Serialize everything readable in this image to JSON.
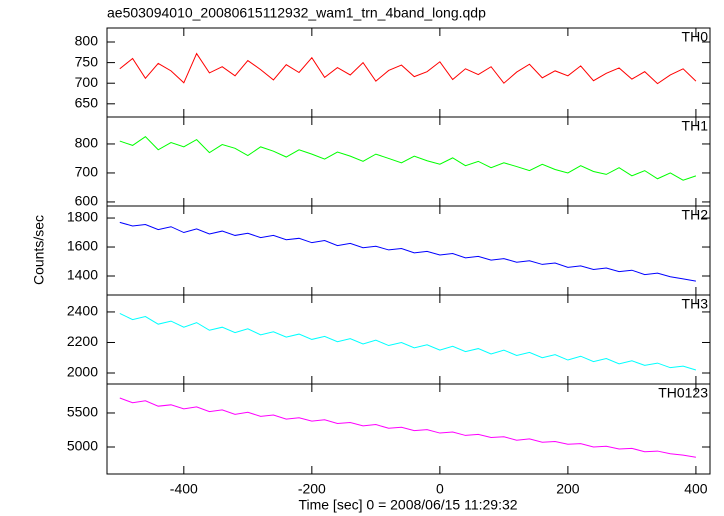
{
  "chart_data": [
    {
      "type": "line",
      "title": "ae503094010_20080615112932_wam1_trn_4band_long.qdp",
      "x": [
        -500,
        -480,
        -460,
        -440,
        -420,
        -400,
        -380,
        -360,
        -340,
        -320,
        -300,
        -280,
        -260,
        -240,
        -220,
        -200,
        -180,
        -160,
        -140,
        -120,
        -100,
        -80,
        -60,
        -40,
        -20,
        0,
        20,
        40,
        60,
        80,
        100,
        120,
        140,
        160,
        180,
        200,
        220,
        240,
        260,
        280,
        300,
        320,
        340,
        360,
        380,
        400
      ],
      "series": [
        {
          "name": "TH0",
          "color": "#ff0000",
          "values": [
            735,
            760,
            712,
            748,
            730,
            701,
            772,
            725,
            740,
            718,
            755,
            733,
            708,
            745,
            726,
            762,
            714,
            738,
            720,
            750,
            705,
            731,
            744,
            716,
            728,
            752,
            709,
            735,
            721,
            740,
            700,
            727,
            746,
            713,
            730,
            718,
            742,
            706,
            724,
            737,
            710,
            728,
            699,
            720,
            735,
            705
          ]
        }
      ],
      "xlim": [
        -520,
        422
      ],
      "xticks": [
        -400,
        -200,
        0,
        200,
        400
      ],
      "ylim": [
        618,
        834
      ],
      "yticks": [
        650,
        700,
        750,
        800
      ]
    },
    {
      "type": "line",
      "x": [
        -500,
        -480,
        -460,
        -440,
        -420,
        -400,
        -380,
        -360,
        -340,
        -320,
        -300,
        -280,
        -260,
        -240,
        -220,
        -200,
        -180,
        -160,
        -140,
        -120,
        -100,
        -80,
        -60,
        -40,
        -20,
        0,
        20,
        40,
        60,
        80,
        100,
        120,
        140,
        160,
        180,
        200,
        220,
        240,
        260,
        280,
        300,
        320,
        340,
        360,
        380,
        400
      ],
      "series": [
        {
          "name": "TH1",
          "color": "#00ff00",
          "values": [
            810,
            795,
            825,
            780,
            805,
            790,
            815,
            770,
            798,
            785,
            760,
            790,
            775,
            755,
            780,
            765,
            748,
            772,
            758,
            740,
            765,
            750,
            735,
            758,
            742,
            730,
            752,
            725,
            740,
            718,
            735,
            722,
            708,
            730,
            712,
            700,
            725,
            705,
            695,
            718,
            690,
            708,
            680,
            700,
            675,
            690
          ]
        }
      ],
      "xlim": [
        -520,
        422
      ],
      "xticks": [
        -400,
        -200,
        0,
        200,
        400
      ],
      "ylim": [
        586,
        893
      ],
      "yticks": [
        600,
        700,
        800
      ]
    },
    {
      "type": "line",
      "ylabel": "Counts/sec",
      "x": [
        -500,
        -480,
        -460,
        -440,
        -420,
        -400,
        -380,
        -360,
        -340,
        -320,
        -300,
        -280,
        -260,
        -240,
        -220,
        -200,
        -180,
        -160,
        -140,
        -120,
        -100,
        -80,
        -60,
        -40,
        -20,
        0,
        20,
        40,
        60,
        80,
        100,
        120,
        140,
        160,
        180,
        200,
        220,
        240,
        260,
        280,
        300,
        320,
        340,
        360,
        380,
        400
      ],
      "series": [
        {
          "name": "TH2",
          "color": "#0000ff",
          "values": [
            1770,
            1745,
            1755,
            1720,
            1740,
            1700,
            1725,
            1690,
            1710,
            1680,
            1695,
            1665,
            1680,
            1650,
            1660,
            1630,
            1645,
            1610,
            1625,
            1595,
            1605,
            1580,
            1590,
            1560,
            1570,
            1545,
            1555,
            1525,
            1535,
            1510,
            1520,
            1495,
            1505,
            1480,
            1490,
            1460,
            1470,
            1445,
            1455,
            1430,
            1440,
            1410,
            1420,
            1395,
            1380,
            1365
          ]
        }
      ],
      "xlim": [
        -520,
        422
      ],
      "xticks": [
        -400,
        -200,
        0,
        200,
        400
      ],
      "ylim": [
        1269,
        1883
      ],
      "yticks": [
        1400,
        1600,
        1800
      ]
    },
    {
      "type": "line",
      "x": [
        -500,
        -480,
        -460,
        -440,
        -420,
        -400,
        -380,
        -360,
        -340,
        -320,
        -300,
        -280,
        -260,
        -240,
        -220,
        -200,
        -180,
        -160,
        -140,
        -120,
        -100,
        -80,
        -60,
        -40,
        -20,
        0,
        20,
        40,
        60,
        80,
        100,
        120,
        140,
        160,
        180,
        200,
        220,
        240,
        260,
        280,
        300,
        320,
        340,
        360,
        380,
        400
      ],
      "series": [
        {
          "name": "TH3",
          "color": "#00ffff",
          "values": [
            2390,
            2350,
            2370,
            2320,
            2340,
            2300,
            2330,
            2280,
            2300,
            2265,
            2290,
            2250,
            2270,
            2235,
            2255,
            2220,
            2240,
            2205,
            2225,
            2190,
            2215,
            2180,
            2200,
            2165,
            2185,
            2150,
            2175,
            2140,
            2160,
            2125,
            2150,
            2115,
            2135,
            2100,
            2120,
            2085,
            2110,
            2075,
            2095,
            2060,
            2080,
            2050,
            2065,
            2035,
            2045,
            2020
          ]
        }
      ],
      "xlim": [
        -520,
        422
      ],
      "xticks": [
        -400,
        -200,
        0,
        200,
        400
      ],
      "ylim": [
        1928,
        2511
      ],
      "yticks": [
        2000,
        2200,
        2400
      ]
    },
    {
      "type": "line",
      "xlabel": "Time [sec] 0 = 2008/06/15 11:29:32",
      "x": [
        -500,
        -480,
        -460,
        -440,
        -420,
        -400,
        -380,
        -360,
        -340,
        -320,
        -300,
        -280,
        -260,
        -240,
        -220,
        -200,
        -180,
        -160,
        -140,
        -120,
        -100,
        -80,
        -60,
        -40,
        -20,
        0,
        20,
        40,
        60,
        80,
        100,
        120,
        140,
        160,
        180,
        200,
        220,
        240,
        260,
        280,
        300,
        320,
        340,
        360,
        380,
        400
      ],
      "series": [
        {
          "name": "TH0123",
          "color": "#ff00ff",
          "values": [
            5720,
            5650,
            5680,
            5600,
            5620,
            5560,
            5590,
            5520,
            5545,
            5480,
            5510,
            5450,
            5470,
            5410,
            5430,
            5380,
            5400,
            5345,
            5360,
            5310,
            5330,
            5275,
            5290,
            5240,
            5255,
            5205,
            5220,
            5170,
            5185,
            5140,
            5150,
            5100,
            5120,
            5070,
            5080,
            5040,
            5050,
            5000,
            5010,
            4970,
            4980,
            4930,
            4940,
            4900,
            4880,
            4850
          ]
        }
      ],
      "xlim": [
        -520,
        422
      ],
      "xticks": [
        -400,
        -200,
        0,
        200,
        400
      ],
      "ylim": [
        4603,
        5926
      ],
      "yticks": [
        5000,
        5500
      ]
    }
  ]
}
